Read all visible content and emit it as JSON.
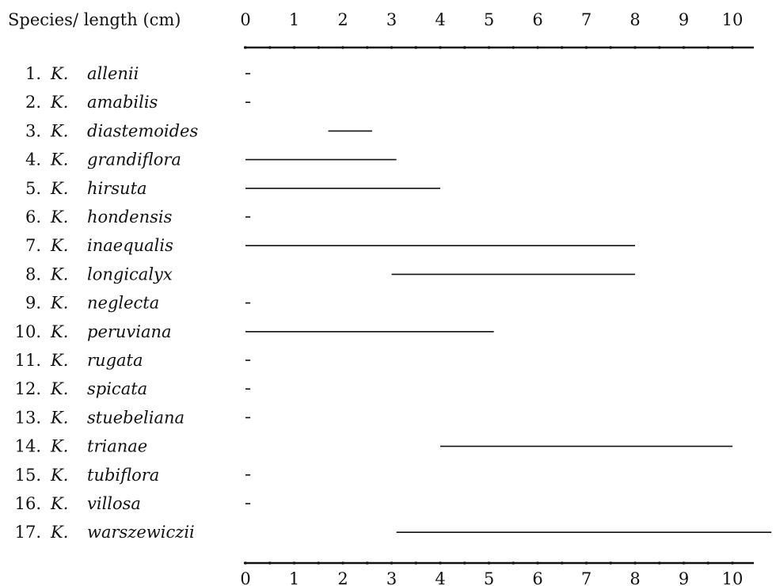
{
  "chart_data": {
    "type": "range",
    "header_label": "Species/ length (cm)",
    "x_ticks": [
      "0",
      "1",
      "2",
      "3",
      "4",
      "5",
      "6",
      "7",
      "8",
      "9",
      "10"
    ],
    "xlim": [
      0,
      10.8
    ],
    "rows": [
      {
        "number": "1.",
        "genus": "K.",
        "epithet": "allenii",
        "start": 0,
        "end": 0.1
      },
      {
        "number": "2.",
        "genus": "K.",
        "epithet": "amabilis",
        "start": 0,
        "end": 0.1
      },
      {
        "number": "3.",
        "genus": "K.",
        "epithet": "diastemoides",
        "start": 1.7,
        "end": 2.6
      },
      {
        "number": "4.",
        "genus": "K.",
        "epithet": "grandiflora",
        "start": 0,
        "end": 3.1
      },
      {
        "number": "5.",
        "genus": "K.",
        "epithet": "hirsuta",
        "start": 0,
        "end": 4.0
      },
      {
        "number": "6.",
        "genus": "K.",
        "epithet": "hondensis",
        "start": 0,
        "end": 0.1
      },
      {
        "number": "7.",
        "genus": "K.",
        "epithet": "inaequalis",
        "start": 0,
        "end": 8.0
      },
      {
        "number": "8.",
        "genus": "K.",
        "epithet": "longicalyx",
        "start": 3.0,
        "end": 8.0
      },
      {
        "number": "9.",
        "genus": "K.",
        "epithet": "neglecta",
        "start": 0,
        "end": 0.1
      },
      {
        "number": "10.",
        "genus": "K.",
        "epithet": "peruviana",
        "start": 0,
        "end": 5.1
      },
      {
        "number": "11.",
        "genus": "K.",
        "epithet": "rugata",
        "start": 0,
        "end": 0.1
      },
      {
        "number": "12.",
        "genus": "K.",
        "epithet": "spicata",
        "start": 0,
        "end": 0.1
      },
      {
        "number": "13.",
        "genus": "K.",
        "epithet": "stuebeliana",
        "start": 0,
        "end": 0.1
      },
      {
        "number": "14.",
        "genus": "K.",
        "epithet": "trianae",
        "start": 4.0,
        "end": 10.0
      },
      {
        "number": "15.",
        "genus": "K.",
        "epithet": "tubiflora",
        "start": 0,
        "end": 0.1
      },
      {
        "number": "16.",
        "genus": "K.",
        "epithet": "villosa",
        "start": 0,
        "end": 0.1
      },
      {
        "number": "17.",
        "genus": "K.",
        "epithet": "warszewiczii",
        "start": 3.1,
        "end": 10.8
      }
    ]
  }
}
